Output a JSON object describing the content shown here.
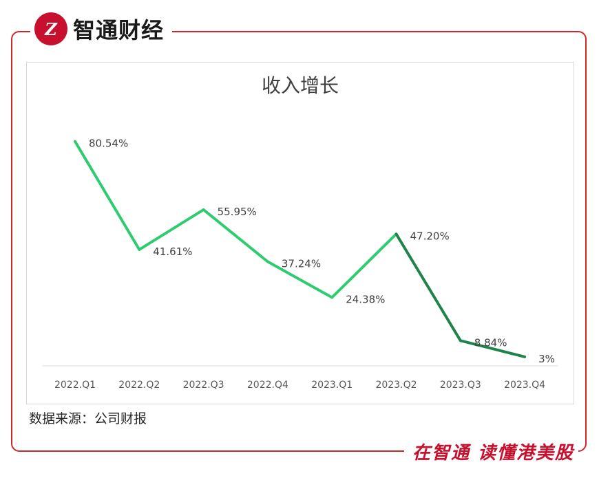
{
  "brand": {
    "logo_mark": "Z",
    "name": "智通财经"
  },
  "slogan": "在智通 读懂港美股",
  "source_note": "数据来源：公司财报",
  "colors": {
    "frame": "#d0262a",
    "line_light": "#2ecc71",
    "line_dark": "#1e8449",
    "brand": "#c8102e"
  },
  "chart_data": {
    "type": "line",
    "title": "收入增长",
    "categories": [
      "2022.Q1",
      "2022.Q2",
      "2022.Q3",
      "2022.Q4",
      "2023.Q1",
      "2023.Q2",
      "2023.Q3",
      "2023.Q4"
    ],
    "series": [
      {
        "values": [
          80.54,
          41.61,
          55.95,
          37.24,
          24.38,
          47.2,
          8.84,
          3
        ],
        "labels": [
          "80.54%",
          "41.61%",
          "55.95%",
          "37.24%",
          "24.38%",
          "47.20%",
          "8.84%",
          "3%"
        ]
      }
    ],
    "xlabel": "",
    "ylabel": "",
    "ylim": [
      0,
      100
    ],
    "grid": false,
    "legend": "none"
  }
}
